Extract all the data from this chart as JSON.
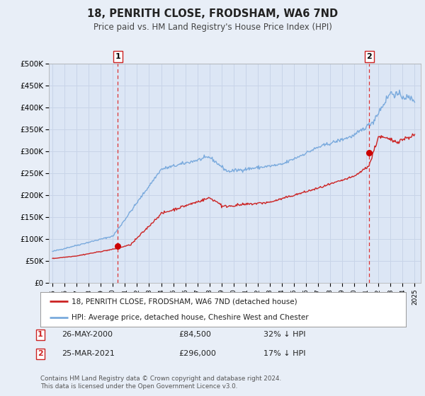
{
  "title": "18, PENRITH CLOSE, FRODSHAM, WA6 7ND",
  "subtitle": "Price paid vs. HM Land Registry's House Price Index (HPI)",
  "bg_color": "#e8eef7",
  "plot_bg_color": "#dce6f5",
  "grid_color": "#c8d4e8",
  "hpi_color": "#7aaadd",
  "price_color": "#cc2222",
  "marker_color": "#cc0000",
  "vline_color": "#dd3333",
  "sale1_year": 2000.4,
  "sale1_value": 84500,
  "sale2_year": 2021.23,
  "sale2_value": 296000,
  "sale1_date": "26-MAY-2000",
  "sale1_price": "£84,500",
  "sale1_info": "32% ↓ HPI",
  "sale2_date": "25-MAR-2021",
  "sale2_price": "£296,000",
  "sale2_info": "17% ↓ HPI",
  "legend_label1": "18, PENRITH CLOSE, FRODSHAM, WA6 7ND (detached house)",
  "legend_label2": "HPI: Average price, detached house, Cheshire West and Chester",
  "footnote1": "Contains HM Land Registry data © Crown copyright and database right 2024.",
  "footnote2": "This data is licensed under the Open Government Licence v3.0.",
  "ylim_max": 500000,
  "yticks": [
    0,
    50000,
    100000,
    150000,
    200000,
    250000,
    300000,
    350000,
    400000,
    450000,
    500000
  ],
  "ytick_labels": [
    "£0",
    "£50K",
    "£100K",
    "£150K",
    "£200K",
    "£250K",
    "£300K",
    "£350K",
    "£400K",
    "£450K",
    "£500K"
  ],
  "xmin": 1994.7,
  "xmax": 2025.5
}
